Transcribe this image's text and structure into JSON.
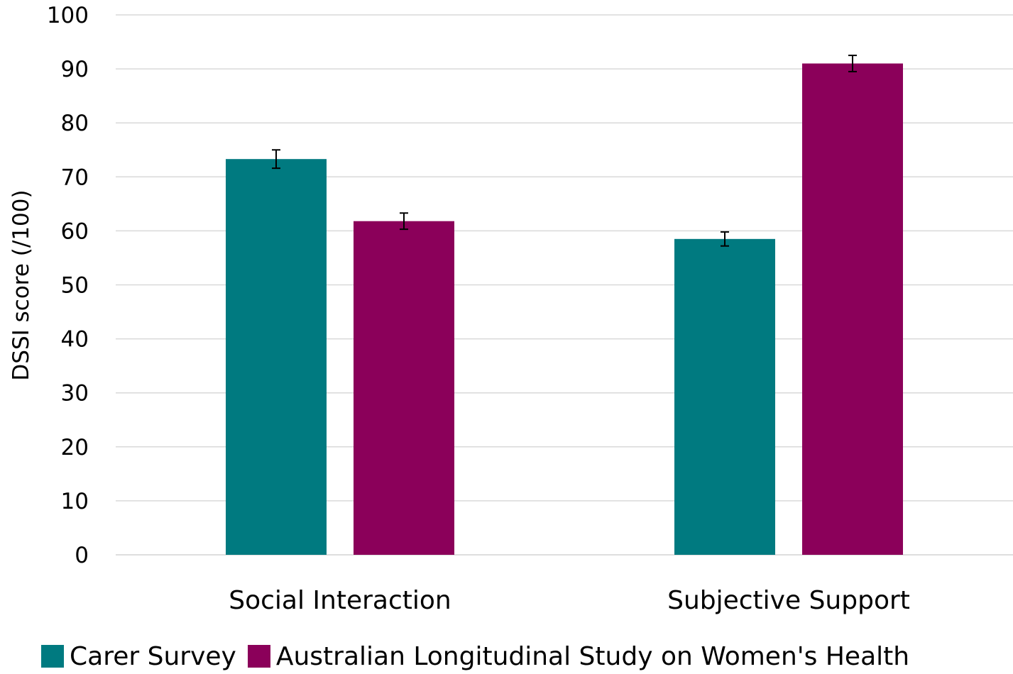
{
  "chart_data": {
    "type": "bar",
    "title": "",
    "xlabel": "",
    "ylabel": "DSSI score (/100)",
    "ylim": [
      0,
      100
    ],
    "yticks": [
      0,
      10,
      20,
      30,
      40,
      50,
      60,
      70,
      80,
      90,
      100
    ],
    "grid": true,
    "legend_position": "bottom",
    "categories": [
      "Social Interaction",
      "Subjective Support"
    ],
    "series": [
      {
        "name": "Carer Survey",
        "color": "#007A80",
        "values": [
          73.3,
          58.5
        ],
        "error": [
          1.7,
          1.3
        ]
      },
      {
        "name": "Australian Longitudinal Study on Women's Health",
        "color": "#8B005A",
        "values": [
          61.8,
          91.0
        ],
        "error": [
          1.5,
          1.5
        ]
      }
    ]
  }
}
